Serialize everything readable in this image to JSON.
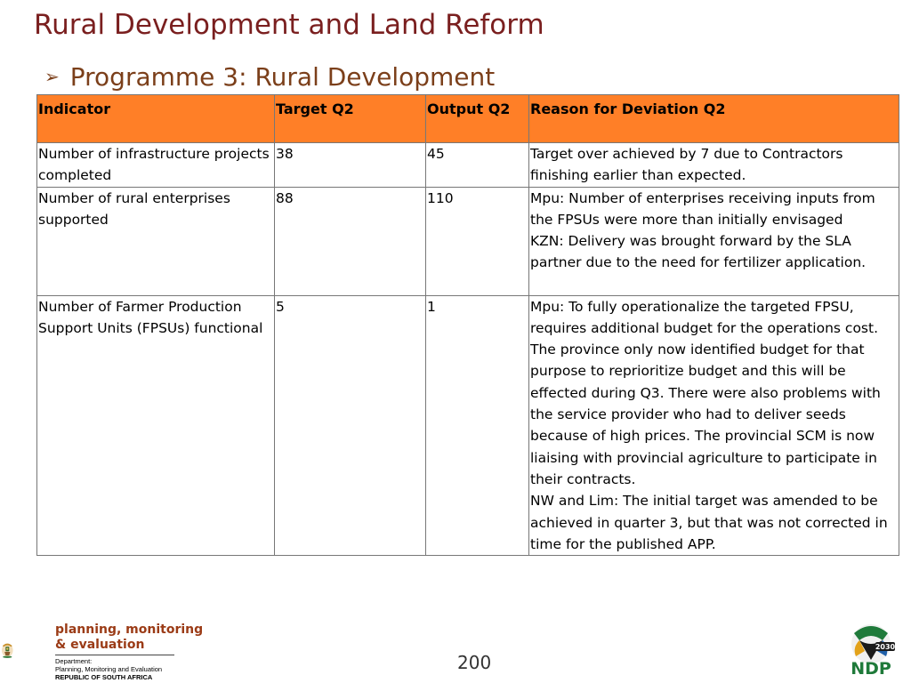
{
  "slide": {
    "title": "Rural Development and Land Reform",
    "subtitle": "Programme 3: Rural Development",
    "page_number": "200"
  },
  "table": {
    "headers": [
      "Indicator",
      "Target Q2",
      "Output Q2",
      "Reason for Deviation Q2"
    ],
    "rows": [
      {
        "indicator": "Number of infrastructure projects completed",
        "target": "38",
        "output": "45",
        "reason": [
          "Target over achieved by 7 due to Contractors finishing earlier than expected."
        ]
      },
      {
        "indicator": "Number of rural enterprises supported",
        "target": "88",
        "output": "110",
        "reason": [
          "Mpu: Number of enterprises receiving inputs from the FPSUs were more than initially envisaged",
          "KZN: Delivery was brought forward by the SLA partner due to the need for fertilizer application."
        ]
      },
      {
        "indicator": "Number of Farmer Production Support Units (FPSUs) functional",
        "target": "5",
        "output": "1",
        "reason": [
          "Mpu: To fully operationalize the targeted FPSU, requires additional budget for the operations cost. The province only now identified budget for that purpose to reprioritize budget and this will be effected during Q3. There were also problems with the service provider who had  to deliver seeds because of high prices. The provincial SCM is now liaising with provincial agriculture to participate in their contracts.",
          "NW and Lim: The initial target was amended to be achieved in quarter 3, but that was not corrected in time for the published APP."
        ]
      }
    ]
  },
  "footer": {
    "pme_line1": "planning, monitoring",
    "pme_line2": "& evaluation",
    "dept_line1": "Department:",
    "dept_line2": "Planning, Monitoring and Evaluation",
    "dept_line3": "REPUBLIC OF SOUTH AFRICA",
    "ndp_year": "2030",
    "ndp_text": "NDP"
  },
  "colors": {
    "title": "#7a1f1f",
    "subtitle": "#7b3f1a",
    "header_fill": "#ff7f27"
  }
}
